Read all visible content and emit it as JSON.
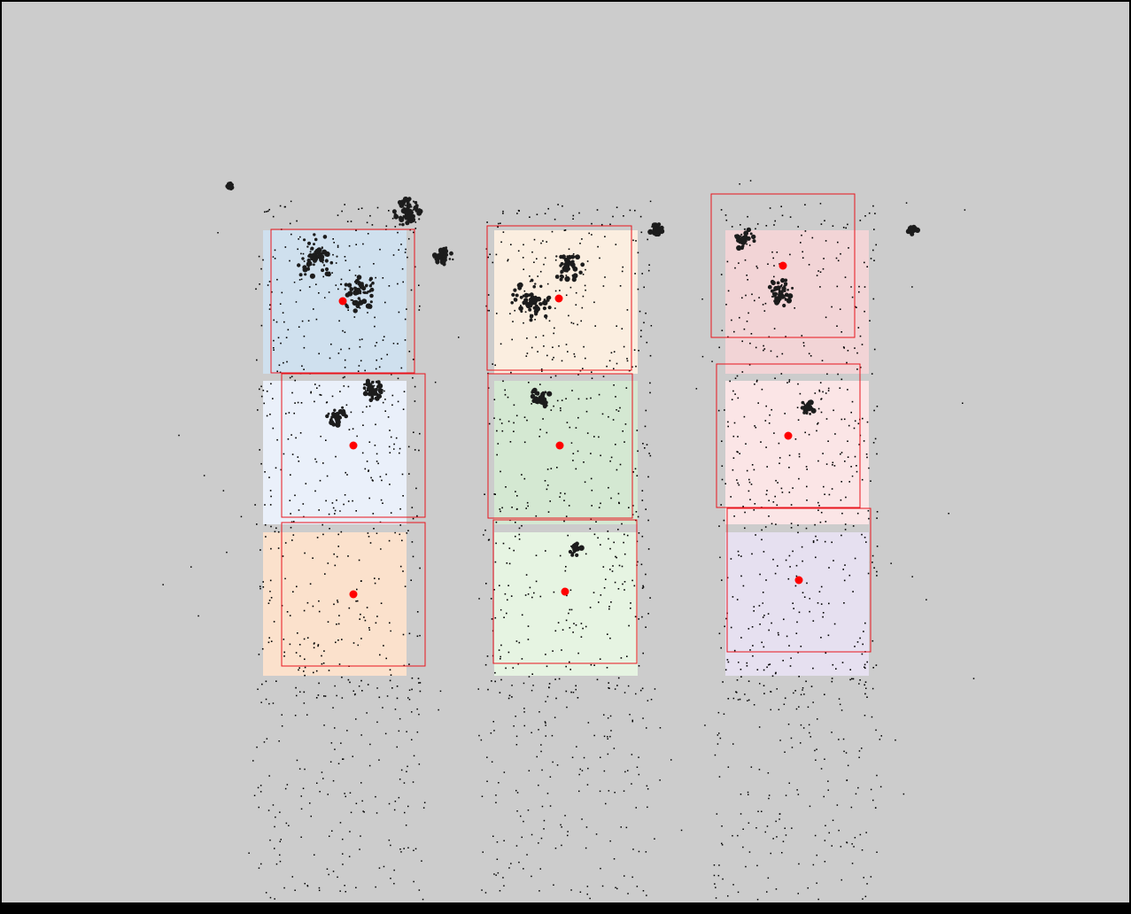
{
  "background_color": "#cccccc",
  "frame_color": "#000000",
  "box_outline_color": "#e8141c",
  "centroid_color": "#ff0000",
  "trace_color": "#000000",
  "regions": [
    {
      "id": "r1",
      "fill": "#cfe0ee"
    },
    {
      "id": "r2",
      "fill": "#fbeee0"
    },
    {
      "id": "r3",
      "fill": "#f2d4d6"
    },
    {
      "id": "r4",
      "fill": "#eaf0fa"
    },
    {
      "id": "r5",
      "fill": "#d4e8d2"
    },
    {
      "id": "r6",
      "fill": "#fbe5e6"
    },
    {
      "id": "r7",
      "fill": "#fbe1cc"
    },
    {
      "id": "r8",
      "fill": "#e6f4e2"
    },
    {
      "id": "r9",
      "fill": "#e6e0f0"
    }
  ]
}
